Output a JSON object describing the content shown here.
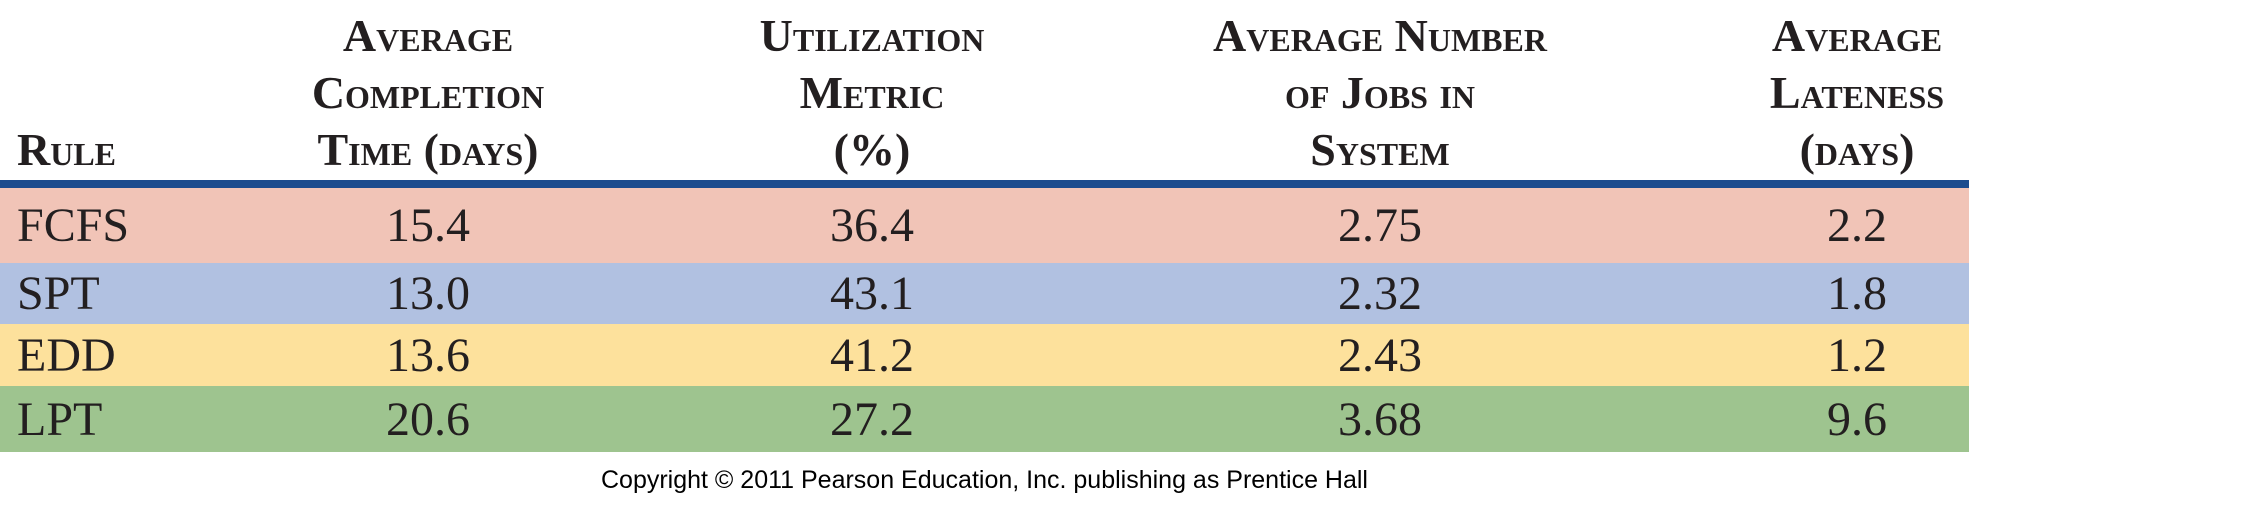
{
  "table": {
    "header": [
      [
        "Rule"
      ],
      [
        "Average",
        "Completion",
        "Time (days)"
      ],
      [
        "Utilization",
        "Metric",
        "(%)"
      ],
      [
        "Average Number",
        "of Jobs in",
        "System"
      ],
      [
        "Average",
        "Lateness",
        "(days)"
      ]
    ],
    "rows": [
      [
        "FCFS",
        "15.4",
        "36.4",
        "2.75",
        "2.2"
      ],
      [
        "SPT",
        "13.0",
        "43.1",
        "2.32",
        "1.8"
      ],
      [
        "EDD",
        "13.6",
        "41.2",
        "2.43",
        "1.2"
      ],
      [
        "LPT",
        "20.6",
        "27.2",
        "3.68",
        "9.6"
      ]
    ],
    "row_colors": [
      "#f1c4b7",
      "#b1c1e1",
      "#fde19c",
      "#9ec48f"
    ]
  },
  "footer": "Copyright © 2011 Pearson Education, Inc. publishing as Prentice Hall"
}
